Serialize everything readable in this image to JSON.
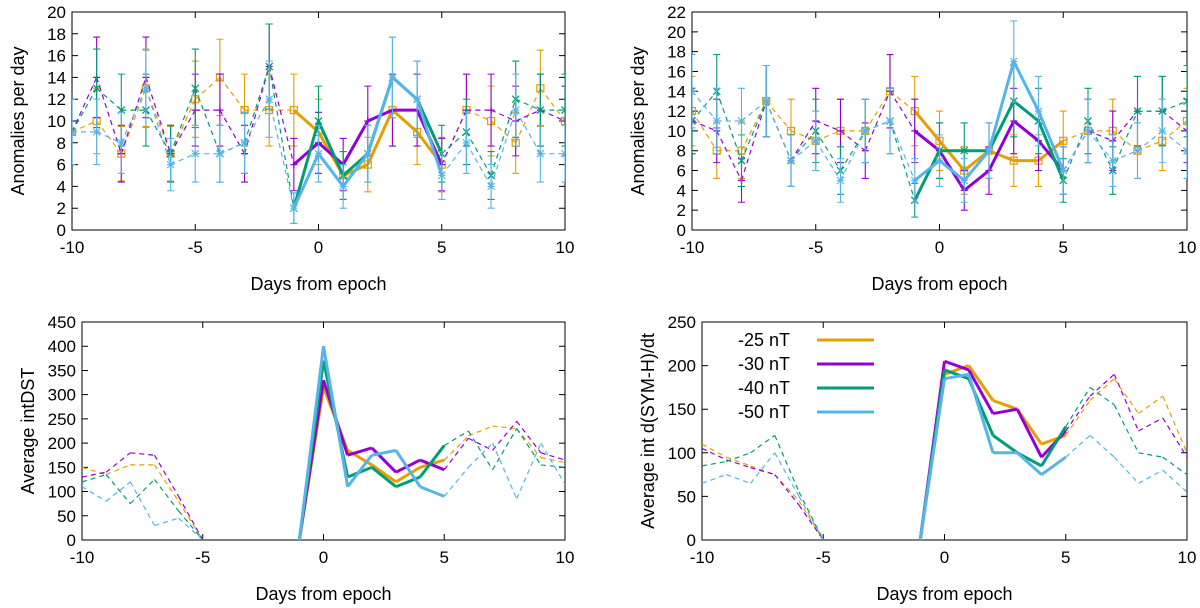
{
  "colors": {
    "-25 nT": "#E69F00",
    "-30 nT": "#9400D3",
    "-40 nT": "#009E73",
    "-50 nT": "#56B4E9"
  },
  "chart_data": [
    {
      "type": "line",
      "id": "top-left",
      "title": "",
      "xlabel": "Days from epoch",
      "ylabel": "Anomalies per day",
      "xlim": [
        -10,
        10
      ],
      "ylim": [
        0,
        20
      ],
      "xticks": [
        -10,
        -5,
        0,
        5,
        10
      ],
      "yticks": [
        0,
        2,
        4,
        6,
        8,
        10,
        12,
        14,
        16,
        18,
        20
      ],
      "solid_range": [
        -1,
        5
      ],
      "error_bars": true,
      "x": [
        -10,
        -9,
        -8,
        -7,
        -6,
        -5,
        -4,
        -3,
        -2,
        -1,
        0,
        1,
        2,
        3,
        4,
        5,
        6,
        7,
        8,
        9,
        10
      ],
      "series": [
        {
          "name": "-25 nT",
          "marker": "square",
          "values": [
            9,
            10,
            7,
            13,
            7,
            12,
            14,
            11,
            11,
            11,
            9,
            5,
            6,
            11,
            9,
            6,
            11,
            10,
            8,
            13,
            10
          ],
          "errors": [
            3,
            3,
            2.5,
            3.5,
            2.5,
            3.5,
            3.5,
            3.3,
            3.3,
            3.3,
            3,
            2.2,
            2.5,
            3.3,
            3,
            2.5,
            3.3,
            3.2,
            2.8,
            3.5,
            3.2
          ]
        },
        {
          "name": "-30 nT",
          "marker": "plus",
          "values": [
            9,
            14,
            7,
            14,
            7,
            11,
            11,
            7,
            15,
            6,
            8,
            6,
            10,
            11,
            11,
            6,
            11,
            11,
            10,
            11,
            10
          ],
          "errors": [
            3,
            3.7,
            2.6,
            3.7,
            2.6,
            3.3,
            3.3,
            2.6,
            3.9,
            2.4,
            2.8,
            2.4,
            3.2,
            3.3,
            3.3,
            2.4,
            3.3,
            3.3,
            3.2,
            3.3,
            3.2
          ]
        },
        {
          "name": "-40 nT",
          "marker": "x",
          "values": [
            9,
            13,
            11,
            11,
            7,
            13,
            7,
            8,
            15,
            2,
            10,
            5,
            7,
            14,
            12,
            7,
            9,
            5,
            12,
            11,
            11
          ],
          "errors": [
            3,
            3.6,
            3.3,
            3.3,
            2.6,
            3.6,
            2.6,
            2.8,
            3.9,
            1.4,
            3.2,
            2.2,
            2.6,
            3.7,
            3.5,
            2.6,
            3,
            2.2,
            3.5,
            3.3,
            3.3
          ]
        },
        {
          "name": "-50 nT",
          "marker": "asterisk",
          "values": [
            9,
            9,
            8,
            13,
            6,
            7,
            7,
            8,
            12,
            2,
            7,
            4,
            7,
            14,
            12,
            5,
            8,
            4,
            11,
            7,
            7
          ],
          "errors": [
            3,
            3,
            2.8,
            3.6,
            2.4,
            2.6,
            2.6,
            2.8,
            3.5,
            1.4,
            2.6,
            2,
            2.6,
            3.7,
            3.5,
            2.2,
            2.8,
            2,
            3.3,
            2.6,
            2.6
          ]
        }
      ]
    },
    {
      "type": "line",
      "id": "top-right",
      "title": "",
      "xlabel": "Days from epoch",
      "ylabel": "Anomalies per day",
      "xlim": [
        -10,
        10
      ],
      "ylim": [
        0,
        22
      ],
      "xticks": [
        -10,
        -5,
        0,
        5,
        10
      ],
      "yticks": [
        0,
        2,
        4,
        6,
        8,
        10,
        12,
        14,
        16,
        18,
        20,
        22
      ],
      "solid_range": [
        -1,
        5
      ],
      "error_bars": true,
      "x": [
        -10,
        -9,
        -8,
        -7,
        -6,
        -5,
        -4,
        -3,
        -2,
        -1,
        0,
        1,
        2,
        3,
        4,
        5,
        6,
        7,
        8,
        9,
        10
      ],
      "series": [
        {
          "name": "-25 nT",
          "marker": "square",
          "values": [
            12,
            8,
            8,
            13,
            10,
            9,
            10,
            10,
            14,
            12,
            9,
            6,
            8,
            7,
            7,
            9,
            10,
            10,
            8,
            9,
            11
          ],
          "errors": [
            3.5,
            2.8,
            2.8,
            3.6,
            3.2,
            3,
            3.2,
            3.2,
            3.7,
            3.5,
            3,
            2.4,
            2.8,
            2.6,
            2.6,
            3,
            3.2,
            3.2,
            2.8,
            3,
            3.3
          ]
        },
        {
          "name": "-30 nT",
          "marker": "plus",
          "values": [
            11,
            10,
            5,
            13,
            7,
            11,
            10,
            8,
            14,
            10,
            8,
            4,
            6,
            11,
            9,
            6,
            10,
            9,
            12,
            12,
            10
          ],
          "errors": [
            3.3,
            3.2,
            2.2,
            3.6,
            2.6,
            3.3,
            3.2,
            2.8,
            3.7,
            3.2,
            2.8,
            2,
            2.4,
            3.3,
            3,
            2.4,
            3.2,
            3,
            3.5,
            3.5,
            3.2
          ]
        },
        {
          "name": "-40 nT",
          "marker": "x",
          "values": [
            11,
            14,
            7,
            13,
            7,
            10,
            6,
            10,
            11,
            3,
            8,
            8,
            8,
            13,
            11,
            5,
            11,
            6,
            12,
            12,
            13
          ],
          "errors": [
            3.3,
            3.7,
            2.6,
            3.6,
            2.6,
            3.2,
            2.4,
            3.2,
            3.3,
            1.7,
            2.8,
            2.8,
            2.8,
            3.6,
            3.3,
            2.2,
            3.3,
            2.4,
            3.5,
            3.5,
            3.6
          ]
        },
        {
          "name": "-50 nT",
          "marker": "asterisk",
          "values": [
            14,
            11,
            11,
            13,
            7,
            9,
            5,
            10,
            11,
            5,
            7,
            5,
            8,
            17,
            12,
            6,
            10,
            7,
            8,
            10,
            8
          ],
          "errors": [
            3.7,
            3.3,
            3.3,
            3.6,
            2.6,
            3,
            2.2,
            3.2,
            3.3,
            2.2,
            2.6,
            2.2,
            2.8,
            4.1,
            3.5,
            2.4,
            3.2,
            2.6,
            2.8,
            3.2,
            2.8
          ]
        }
      ]
    },
    {
      "type": "line",
      "id": "bottom-left",
      "title": "",
      "xlabel": "Days from epoch",
      "ylabel": "Average intDST",
      "xlim": [
        -10,
        10
      ],
      "ylim": [
        0,
        450
      ],
      "xticks": [
        -10,
        -5,
        0,
        5,
        10
      ],
      "yticks": [
        0,
        50,
        100,
        150,
        200,
        250,
        300,
        350,
        400,
        450
      ],
      "solid_range": [
        -1,
        5
      ],
      "error_bars": false,
      "x": [
        -10,
        -9,
        -8,
        -7,
        -6,
        -5,
        -4,
        -3,
        -2,
        -1,
        0,
        1,
        2,
        3,
        4,
        5,
        6,
        7,
        8,
        9,
        10
      ],
      "series": [
        {
          "name": "-25 nT",
          "values": [
            150,
            135,
            155,
            155,
            80,
            0,
            null,
            null,
            null,
            0,
            315,
            185,
            155,
            120,
            150,
            165,
            215,
            235,
            230,
            170,
            160
          ]
        },
        {
          "name": "-30 nT",
          "values": [
            130,
            140,
            180,
            175,
            90,
            0,
            null,
            null,
            null,
            0,
            330,
            175,
            190,
            140,
            165,
            145,
            210,
            185,
            245,
            180,
            165
          ]
        },
        {
          "name": "-40 nT",
          "values": [
            120,
            135,
            75,
            125,
            60,
            0,
            null,
            null,
            null,
            0,
            370,
            130,
            150,
            110,
            130,
            195,
            225,
            145,
            230,
            155,
            150
          ]
        },
        {
          "name": "-50 nT",
          "values": [
            110,
            80,
            120,
            30,
            45,
            0,
            null,
            null,
            null,
            0,
            400,
            110,
            175,
            185,
            110,
            90,
            150,
            200,
            85,
            200,
            115
          ]
        }
      ]
    },
    {
      "type": "line",
      "id": "bottom-right",
      "title": "",
      "xlabel": "Days from epoch",
      "ylabel": "Average int d(SYM-H)/dt",
      "xlim": [
        -10,
        10
      ],
      "ylim": [
        0,
        250
      ],
      "xticks": [
        -10,
        -5,
        0,
        5,
        10
      ],
      "yticks": [
        0,
        50,
        100,
        150,
        200,
        250
      ],
      "solid_range": [
        -1,
        5
      ],
      "error_bars": false,
      "legend": {
        "placement": "top-left",
        "entries": [
          "-25 nT",
          "-30 nT",
          "-40 nT",
          "-50 nT"
        ]
      },
      "x": [
        -10,
        -9,
        -8,
        -7,
        -6,
        -5,
        -4,
        -3,
        -2,
        -1,
        0,
        1,
        2,
        3,
        4,
        5,
        6,
        7,
        8,
        9,
        10
      ],
      "series": [
        {
          "name": "-25 nT",
          "values": [
            110,
            95,
            85,
            75,
            45,
            0,
            null,
            null,
            null,
            0,
            190,
            200,
            160,
            150,
            110,
            120,
            160,
            185,
            145,
            165,
            100
          ]
        },
        {
          "name": "-30 nT",
          "values": [
            105,
            92,
            83,
            75,
            40,
            0,
            null,
            null,
            null,
            0,
            205,
            195,
            145,
            150,
            95,
            125,
            165,
            190,
            125,
            140,
            95
          ]
        },
        {
          "name": "-40 nT",
          "values": [
            85,
            90,
            100,
            120,
            55,
            0,
            null,
            null,
            null,
            0,
            195,
            185,
            120,
            100,
            85,
            130,
            175,
            155,
            100,
            95,
            75
          ]
        },
        {
          "name": "-50 nT",
          "values": [
            65,
            75,
            65,
            100,
            50,
            0,
            null,
            null,
            null,
            0,
            185,
            190,
            100,
            100,
            75,
            95,
            120,
            95,
            65,
            80,
            55
          ]
        }
      ]
    }
  ]
}
